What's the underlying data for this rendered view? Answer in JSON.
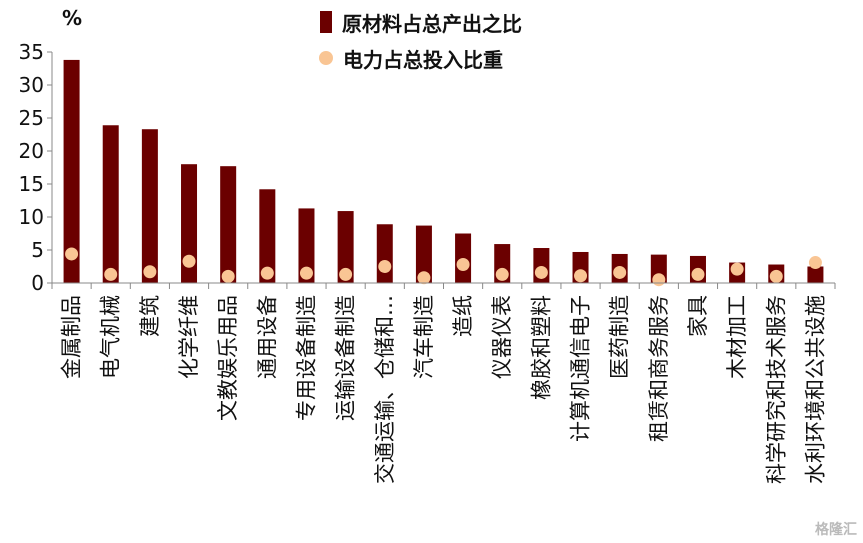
{
  "chart_data": {
    "type": "bar",
    "unit_label": "%",
    "categories": [
      "金属制品",
      "电气机械",
      "建筑",
      "化学纤维",
      "文教娱乐用品",
      "通用设备",
      "专用设备制造",
      "运输设备制造",
      "交通运输、仓储和…",
      "汽车制造",
      "造纸",
      "仪器仪表",
      "橡胶和塑料",
      "计算机通信电子",
      "医药制造",
      "租赁和商务服务",
      "家具",
      "木材加工",
      "科学研究和技术服务",
      "水利环境和公共设施"
    ],
    "series": [
      {
        "name": "原材料占总产出之比",
        "kind": "bar",
        "color": "#6b0000",
        "values": [
          33.8,
          23.9,
          23.3,
          18.0,
          17.7,
          14.2,
          11.3,
          10.9,
          8.9,
          8.7,
          7.5,
          5.9,
          5.3,
          4.7,
          4.4,
          4.3,
          4.1,
          3.1,
          2.8,
          2.5
        ]
      },
      {
        "name": "电力占总投入比重",
        "kind": "scatter",
        "color": "#f9c594",
        "values": [
          4.4,
          1.3,
          1.7,
          3.3,
          1.0,
          1.5,
          1.5,
          1.3,
          2.5,
          0.8,
          2.8,
          1.3,
          1.6,
          1.1,
          1.6,
          0.5,
          1.3,
          2.1,
          1.0,
          3.1
        ]
      }
    ],
    "ylim": [
      0,
      35
    ],
    "yticks": [
      0,
      5,
      10,
      15,
      20,
      25,
      30,
      35
    ],
    "legend_position": "top"
  },
  "watermark": "格隆汇"
}
